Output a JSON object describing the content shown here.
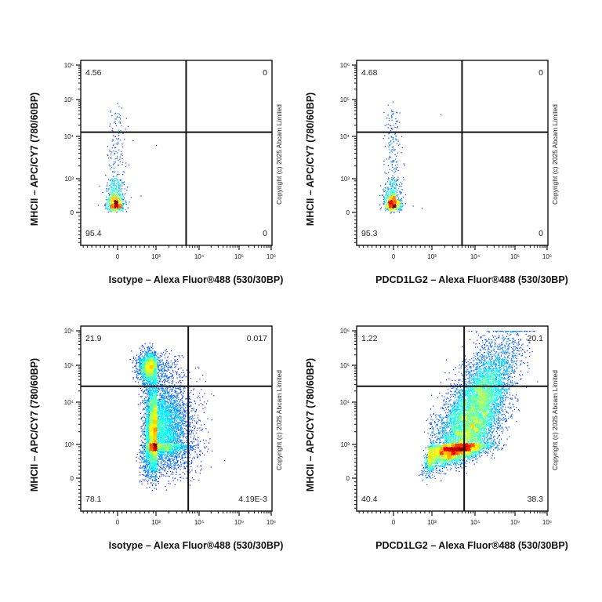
{
  "chart_data": [
    {
      "type": "scatter",
      "subtype": "flow-cytometry-density-dot-plot",
      "xlabel": "Isotype – Alexa Fluor®488 (530/30BP)",
      "ylabel": "MHCII – APC/CY7 (780/60BP)",
      "x_scale": "biexponential",
      "y_scale": "biexponential",
      "x_ticks": [
        "0",
        "10³",
        "10⁴",
        "10⁵",
        "10⁶"
      ],
      "y_ticks": [
        "0",
        "10³",
        "10⁴",
        "10⁵",
        "10⁶"
      ],
      "xlim": [
        "below 0",
        "10⁶"
      ],
      "ylim": [
        "below 0",
        "10⁶"
      ],
      "quadrant_gate": {
        "x": 5000,
        "y": 13000
      },
      "quadrants": {
        "upper_left": "4.56",
        "upper_right": "0",
        "lower_left": "95.4",
        "lower_right": "0"
      },
      "colormap": "jet (density)",
      "copyright": "Copyright (c) 2025 Abcam Limited"
    },
    {
      "type": "scatter",
      "subtype": "flow-cytometry-density-dot-plot",
      "xlabel": "PDCD1LG2 – Alexa Fluor®488 (530/30BP)",
      "ylabel": "MHCII – APC/CY7 (780/60BP)",
      "x_scale": "biexponential",
      "y_scale": "biexponential",
      "x_ticks": [
        "0",
        "10³",
        "10⁴",
        "10⁵",
        "10⁶"
      ],
      "y_ticks": [
        "0",
        "10³",
        "10⁴",
        "10⁵",
        "10⁶"
      ],
      "xlim": [
        "below 0",
        "10⁶"
      ],
      "ylim": [
        "below 0",
        "10⁶"
      ],
      "quadrant_gate": {
        "x": 5000,
        "y": 13000
      },
      "quadrants": {
        "upper_left": "4.68",
        "upper_right": "0",
        "lower_left": "95.3",
        "lower_right": "0"
      },
      "colormap": "jet (density)",
      "copyright": "Copyright (c) 2025 Abcam Limited"
    },
    {
      "type": "scatter",
      "subtype": "flow-cytometry-density-dot-plot",
      "xlabel": "Isotype – Alexa Fluor®488 (530/30BP)",
      "ylabel": "MHCII – APC/CY7 (780/60BP)",
      "x_scale": "biexponential",
      "y_scale": "biexponential",
      "x_ticks": [
        "0",
        "10³",
        "10⁴",
        "10⁵",
        "10⁶"
      ],
      "y_ticks": [
        "0",
        "10³",
        "10⁴",
        "10⁵",
        "10⁶"
      ],
      "xlim": [
        "below 0",
        "10⁶"
      ],
      "ylim": [
        "below 0",
        "10⁶"
      ],
      "quadrant_gate": {
        "x": 5600,
        "y": 27000
      },
      "quadrants": {
        "upper_left": "21.9",
        "upper_right": "0.017",
        "lower_left": "78.1",
        "lower_right": "4.19E-3"
      },
      "colormap": "jet (density)",
      "copyright": "Copyright (c) 2025 Abcam Limited"
    },
    {
      "type": "scatter",
      "subtype": "flow-cytometry-density-dot-plot",
      "xlabel": "PDCD1LG2 – Alexa Fluor®488 (530/30BP)",
      "ylabel": "MHCII – APC/CY7 (780/60BP)",
      "x_scale": "biexponential",
      "y_scale": "biexponential",
      "x_ticks": [
        "0",
        "10³",
        "10⁴",
        "10⁵",
        "10⁶"
      ],
      "y_ticks": [
        "0",
        "10³",
        "10⁴",
        "10⁵",
        "10⁶"
      ],
      "xlim": [
        "below 0",
        "10⁶"
      ],
      "ylim": [
        "below 0",
        "10⁶"
      ],
      "quadrant_gate": {
        "x": 5600,
        "y": 27000
      },
      "quadrants": {
        "upper_left": "1.22",
        "upper_right": "20.1",
        "lower_left": "40.4",
        "lower_right": "38.3"
      },
      "colormap": "jet (density)",
      "copyright": "Copyright (c) 2025 Abcam Limited"
    }
  ]
}
